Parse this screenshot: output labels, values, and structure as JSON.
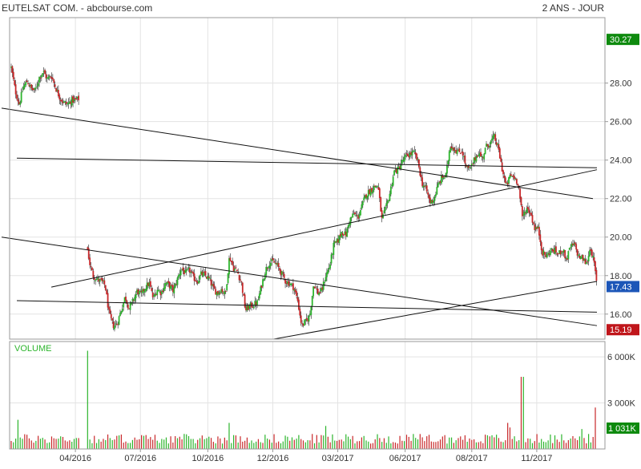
{
  "header": {
    "title": "EUTELSAT COM. - abcbourse.com",
    "period": "2 ANS - JOUR"
  },
  "colors": {
    "up": "#2db52d",
    "down": "#c8282a",
    "wick": "#222222",
    "grid": "#e3e3e3",
    "frame": "#999999",
    "badge_high": "#0e8a0e",
    "badge_last": "#1c56b8",
    "badge_low": "#c0161b",
    "trend": "#111111"
  },
  "chart_data": [
    {
      "type": "candlestick",
      "panel": "price",
      "title": "EUTELSAT COM. - abcbourse.com",
      "period_label": "2 ANS - JOUR",
      "xlabel": "",
      "ylabel": "",
      "x_range": [
        0,
        730
      ],
      "ylim": [
        14.7,
        31.4
      ],
      "y_ticks": [
        "16.00",
        "18.00",
        "20.00",
        "22.00",
        "24.00",
        "26.00",
        "28.00"
      ],
      "x_ticks": [
        {
          "label": "04/2016",
          "x": 80
        },
        {
          "label": "07/2016",
          "x": 161
        },
        {
          "label": "10/2016",
          "x": 245
        },
        {
          "label": "12/2016",
          "x": 326
        },
        {
          "label": "03/2017",
          "x": 407
        },
        {
          "label": "06/2017",
          "x": 491
        },
        {
          "label": "08/2017",
          "x": 574
        },
        {
          "label": "11/2017",
          "x": 655
        }
      ],
      "grid": true,
      "price_badges": [
        {
          "label": "30.27",
          "value": 30.27,
          "kind": "high"
        },
        {
          "label": "17.43",
          "value": 17.43,
          "kind": "last"
        },
        {
          "label": "15.19",
          "value": 15.19,
          "kind": "low"
        }
      ],
      "close_path": [
        [
          0,
          28.8
        ],
        [
          5,
          27.6
        ],
        [
          10,
          26.9
        ],
        [
          15,
          27.8
        ],
        [
          20,
          28.1
        ],
        [
          25,
          27.7
        ],
        [
          30,
          27.6
        ],
        [
          35,
          28.3
        ],
        [
          40,
          28.6
        ],
        [
          45,
          28.2
        ],
        [
          50,
          28.4
        ],
        [
          55,
          27.8
        ],
        [
          60,
          27.3
        ],
        [
          65,
          27.0
        ],
        [
          70,
          26.9
        ],
        [
          75,
          27.1
        ],
        [
          80,
          27.1
        ],
        [
          85,
          27.2
        ],
        [
          95,
          19.4
        ],
        [
          98,
          18.6
        ],
        [
          102,
          18.0
        ],
        [
          107,
          17.8
        ],
        [
          112,
          17.7
        ],
        [
          117,
          17.5
        ],
        [
          122,
          16.0
        ],
        [
          127,
          15.4
        ],
        [
          132,
          15.5
        ],
        [
          137,
          16.2
        ],
        [
          142,
          16.9
        ],
        [
          147,
          16.3
        ],
        [
          152,
          16.7
        ],
        [
          157,
          17.2
        ],
        [
          162,
          17.0
        ],
        [
          167,
          17.4
        ],
        [
          172,
          17.6
        ],
        [
          177,
          16.8
        ],
        [
          182,
          17.3
        ],
        [
          187,
          17.1
        ],
        [
          192,
          17.6
        ],
        [
          197,
          17.5
        ],
        [
          202,
          17.2
        ],
        [
          207,
          17.8
        ],
        [
          212,
          18.4
        ],
        [
          217,
          18.1
        ],
        [
          222,
          18.3
        ],
        [
          227,
          17.9
        ],
        [
          232,
          17.7
        ],
        [
          237,
          18.1
        ],
        [
          242,
          18.0
        ],
        [
          247,
          17.8
        ],
        [
          252,
          17.3
        ],
        [
          257,
          17.1
        ],
        [
          262,
          17.3
        ],
        [
          267,
          17.0
        ],
        [
          272,
          19.0
        ],
        [
          277,
          18.4
        ],
        [
          282,
          18.2
        ],
        [
          287,
          17.6
        ],
        [
          292,
          16.2
        ],
        [
          297,
          16.4
        ],
        [
          302,
          16.5
        ],
        [
          307,
          16.6
        ],
        [
          312,
          17.5
        ],
        [
          317,
          18.3
        ],
        [
          322,
          18.7
        ],
        [
          327,
          18.7
        ],
        [
          332,
          18.5
        ],
        [
          337,
          18.1
        ],
        [
          342,
          17.7
        ],
        [
          347,
          17.6
        ],
        [
          352,
          17.4
        ],
        [
          357,
          16.7
        ],
        [
          362,
          15.4
        ],
        [
          367,
          15.6
        ],
        [
          372,
          15.9
        ],
        [
          377,
          17.6
        ],
        [
          382,
          17.1
        ],
        [
          387,
          17.2
        ],
        [
          392,
          18.0
        ],
        [
          397,
          18.5
        ],
        [
          402,
          19.6
        ],
        [
          407,
          19.8
        ],
        [
          412,
          20.3
        ],
        [
          417,
          20.1
        ],
        [
          422,
          20.9
        ],
        [
          427,
          21.2
        ],
        [
          432,
          21.0
        ],
        [
          437,
          21.6
        ],
        [
          442,
          22.2
        ],
        [
          447,
          22.4
        ],
        [
          452,
          22.6
        ],
        [
          457,
          22.7
        ],
        [
          462,
          20.9
        ],
        [
          467,
          21.5
        ],
        [
          472,
          22.3
        ],
        [
          477,
          23.4
        ],
        [
          482,
          23.5
        ],
        [
          487,
          23.9
        ],
        [
          492,
          24.2
        ],
        [
          497,
          24.3
        ],
        [
          502,
          24.4
        ],
        [
          507,
          23.9
        ],
        [
          512,
          22.8
        ],
        [
          517,
          22.5
        ],
        [
          522,
          21.8
        ],
        [
          527,
          22.0
        ],
        [
          532,
          22.7
        ],
        [
          537,
          23.1
        ],
        [
          542,
          23.2
        ],
        [
          547,
          24.8
        ],
        [
          552,
          24.6
        ],
        [
          557,
          24.4
        ],
        [
          562,
          24.5
        ],
        [
          567,
          23.6
        ],
        [
          572,
          23.5
        ],
        [
          577,
          24.0
        ],
        [
          582,
          24.4
        ],
        [
          587,
          24.1
        ],
        [
          592,
          24.7
        ],
        [
          597,
          24.9
        ],
        [
          602,
          25.2
        ],
        [
          607,
          24.6
        ],
        [
          612,
          23.5
        ],
        [
          617,
          22.6
        ],
        [
          622,
          23.2
        ],
        [
          627,
          23.1
        ],
        [
          632,
          22.8
        ],
        [
          637,
          21.0
        ],
        [
          642,
          21.5
        ],
        [
          647,
          21.3
        ],
        [
          652,
          20.5
        ],
        [
          657,
          20.4
        ],
        [
          662,
          19.2
        ],
        [
          667,
          19.0
        ],
        [
          672,
          19.3
        ],
        [
          677,
          19.3
        ],
        [
          682,
          19.1
        ],
        [
          687,
          19.4
        ],
        [
          692,
          18.8
        ],
        [
          697,
          19.5
        ],
        [
          702,
          19.6
        ],
        [
          707,
          19.0
        ],
        [
          712,
          18.9
        ],
        [
          717,
          18.6
        ],
        [
          722,
          19.5
        ],
        [
          727,
          18.5
        ],
        [
          730,
          17.43
        ]
      ],
      "annotations": [
        {
          "type": "trendline",
          "from": [
            -12,
            26.7
          ],
          "to": [
            725,
            22.0
          ]
        },
        {
          "type": "trendline",
          "from": [
            7,
            24.1
          ],
          "to": [
            730,
            23.6
          ]
        },
        {
          "type": "trendline",
          "from": [
            50,
            17.4
          ],
          "to": [
            730,
            23.5
          ]
        },
        {
          "type": "trendline",
          "from": [
            -12,
            20.0
          ],
          "to": [
            730,
            15.4
          ]
        },
        {
          "type": "trendline",
          "from": [
            7,
            16.7
          ],
          "to": [
            730,
            16.1
          ]
        },
        {
          "type": "trendline",
          "from": [
            327,
            14.7
          ],
          "to": [
            730,
            17.7
          ]
        }
      ]
    },
    {
      "type": "bar",
      "panel": "volume",
      "series_label": "VOLUME",
      "ylim": [
        0,
        7000
      ],
      "y_ticks": [
        {
          "label": "6 000K",
          "value": 6000
        },
        {
          "label": "3 000K",
          "value": 3000
        }
      ],
      "last_badge": {
        "label": "1 031K",
        "value": 1031
      },
      "base_volume_k": 700,
      "spikes_k": [
        {
          "x": 95,
          "v": 6400
        },
        {
          "x": 9,
          "v": 1900
        },
        {
          "x": 272,
          "v": 1700
        },
        {
          "x": 392,
          "v": 1500
        },
        {
          "x": 620,
          "v": 1700
        },
        {
          "x": 637,
          "v": 4700
        },
        {
          "x": 622,
          "v": 1400
        },
        {
          "x": 712,
          "v": 1300
        },
        {
          "x": 727,
          "v": 2700
        }
      ]
    }
  ]
}
